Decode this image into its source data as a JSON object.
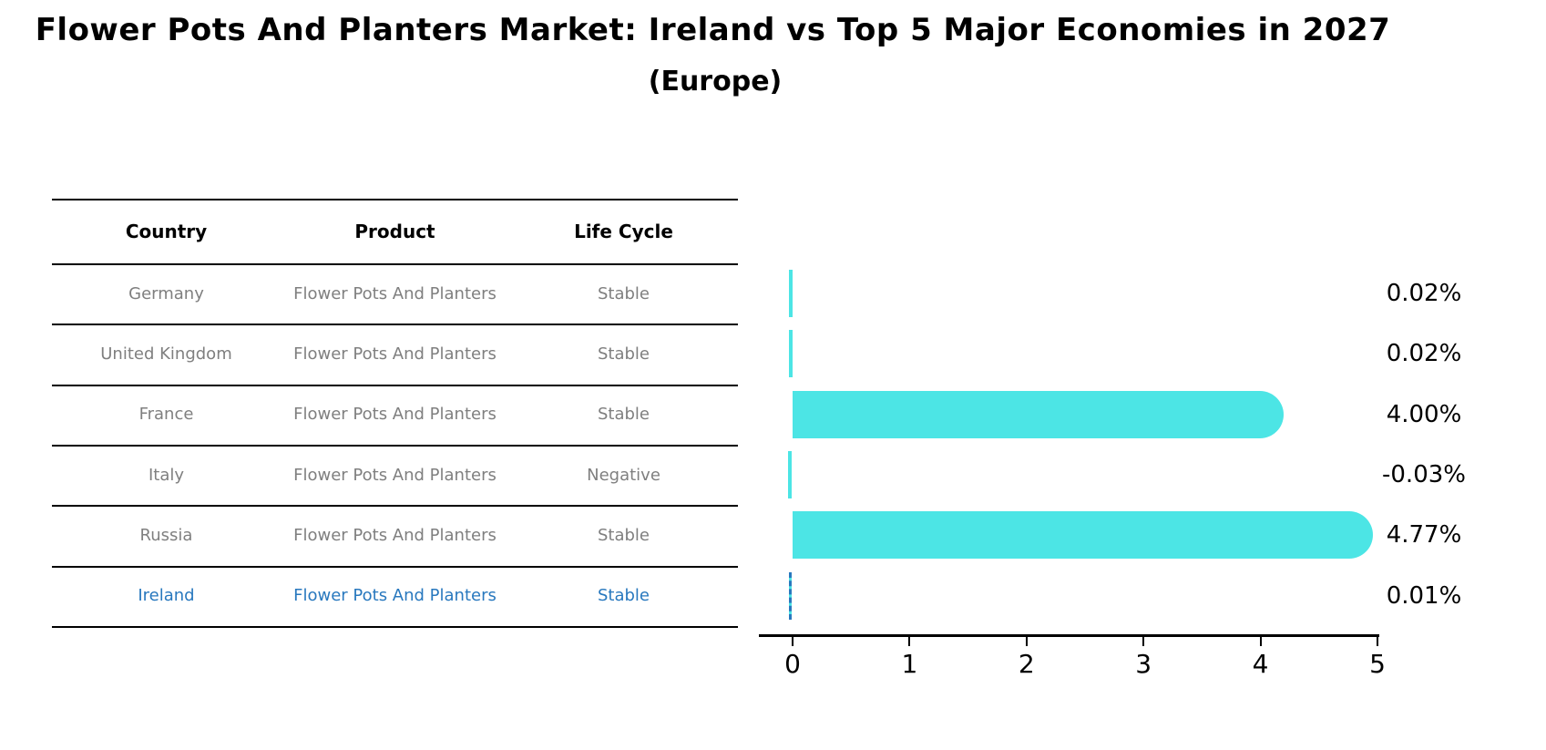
{
  "header": {
    "title": "Flower Pots And Planters Market: Ireland vs Top 5 Major Economies in 2027",
    "subtitle": "(Europe)"
  },
  "table": {
    "headers": [
      "Country",
      "Product",
      "Life Cycle"
    ],
    "rows": [
      {
        "country": "Germany",
        "product": "Flower Pots And Planters",
        "life_cycle": "Stable",
        "highlight": false
      },
      {
        "country": "United Kingdom",
        "product": "Flower Pots And Planters",
        "life_cycle": "Stable",
        "highlight": false
      },
      {
        "country": "France",
        "product": "Flower Pots And Planters",
        "life_cycle": "Stable",
        "highlight": false
      },
      {
        "country": "Italy",
        "product": "Flower Pots And Planters",
        "life_cycle": "Negative",
        "highlight": false
      },
      {
        "country": "Russia",
        "product": "Flower Pots And Planters",
        "life_cycle": "Stable",
        "highlight": false
      },
      {
        "country": "Ireland",
        "product": "Flower Pots And Planters",
        "life_cycle": "Stable",
        "highlight": true
      }
    ],
    "text_color": "#7f7f7f",
    "highlight_text_color": "#2878be"
  },
  "chart_data": {
    "type": "bar",
    "orientation": "horizontal",
    "title": "Flower Pots And Planters Market: Ireland vs Top 5 Major Economies in 2027 (Europe)",
    "categories": [
      "Germany",
      "United Kingdom",
      "France",
      "Italy",
      "Russia",
      "Ireland"
    ],
    "values": [
      0.02,
      0.02,
      4.0,
      -0.03,
      4.77,
      0.01
    ],
    "value_labels": [
      "0.02%",
      "0.02%",
      "4.00%",
      "-0.03%",
      "4.77%",
      "0.01%"
    ],
    "xlabel": "",
    "ylabel": "",
    "xlim": [
      0,
      5
    ],
    "xticks": [
      "0",
      "1",
      "2",
      "3",
      "4",
      "5"
    ],
    "grid": false,
    "legend": "none",
    "bar_color": "#4ce5e5",
    "highlight_index": 5,
    "highlight_edge_color": "#2878be"
  }
}
